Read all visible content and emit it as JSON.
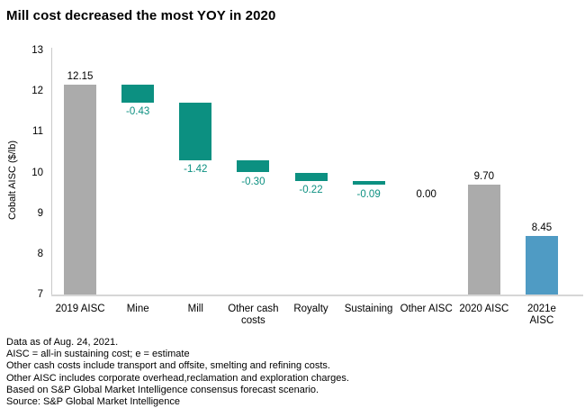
{
  "title": "Mill cost decreased the most YOY in 2020",
  "colors": {
    "total_bar": "#ababab",
    "decrease_bar": "#0c9081",
    "decrease_label": "#0c9081",
    "forecast_bar": "#4f9bc4",
    "value_label": "#000000",
    "axis_line": "#c9c9c9"
  },
  "chart_data": {
    "type": "bar",
    "subtype": "waterfall",
    "title": "Mill cost decreased the most YOY in 2020",
    "xlabel": "",
    "ylabel": "Cobalt AISC ($/lb)",
    "ylim": [
      7,
      13
    ],
    "ytick_step": 1,
    "grid": false,
    "legend": "none",
    "categories": [
      "2019 AISC",
      "Mine",
      "Mill",
      "Other cash costs",
      "Royalty",
      "Sustaining",
      "Other AISC",
      "2020 AISC",
      "2021e AISC"
    ],
    "items": [
      {
        "label_lines": [
          "2019 AISC"
        ],
        "kind": "total",
        "value": 12.15,
        "display": "12.15",
        "forecast": false
      },
      {
        "label_lines": [
          "Mine"
        ],
        "kind": "delta",
        "value": -0.43,
        "display": "-0.43"
      },
      {
        "label_lines": [
          "Mill"
        ],
        "kind": "delta",
        "value": -1.42,
        "display": "-1.42"
      },
      {
        "label_lines": [
          "Other cash",
          "costs"
        ],
        "kind": "delta",
        "value": -0.3,
        "display": "-0.30"
      },
      {
        "label_lines": [
          "Royalty"
        ],
        "kind": "delta",
        "value": -0.22,
        "display": "-0.22"
      },
      {
        "label_lines": [
          "Sustaining"
        ],
        "kind": "delta",
        "value": -0.09,
        "display": "-0.09"
      },
      {
        "label_lines": [
          "Other AISC"
        ],
        "kind": "delta",
        "value": 0.0,
        "display": "0.00"
      },
      {
        "label_lines": [
          "2020 AISC"
        ],
        "kind": "total",
        "value": 9.7,
        "display": "9.70",
        "forecast": false
      },
      {
        "label_lines": [
          "2021e",
          "AISC"
        ],
        "kind": "total",
        "value": 8.45,
        "display": "8.45",
        "forecast": true
      }
    ]
  },
  "footnotes": [
    "Data as of Aug. 24, 2021.",
    "AISC = all-in sustaining cost; e = estimate",
    "Other cash costs include transport and offsite, smelting and refining costs.",
    "Other AISC includes corporate overhead,reclamation and exploration charges.",
    "Based on S&P Global Market Intelligence consensus forecast scenario.",
    "Source: S&P Global Market Intelligence"
  ]
}
